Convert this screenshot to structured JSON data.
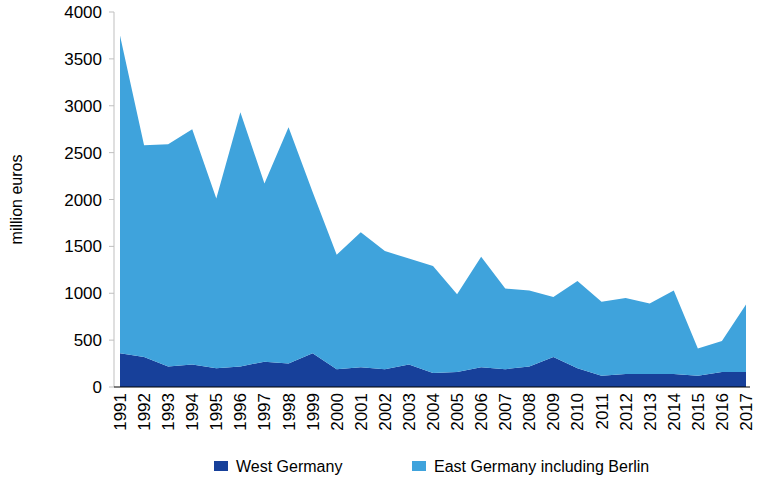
{
  "chart_data": {
    "type": "area",
    "stacked": true,
    "y_label": "million euros",
    "categories": [
      "1991",
      "1992",
      "1993",
      "1994",
      "1995",
      "1996",
      "1997",
      "1998",
      "1999",
      "2000",
      "2001",
      "2002",
      "2003",
      "2004",
      "2005",
      "2006",
      "2007",
      "2008",
      "2009",
      "2010",
      "2011",
      "2012",
      "2013",
      "2014",
      "2015",
      "2016",
      "2017"
    ],
    "series": [
      {
        "name": "West Germany",
        "color": "#17409a",
        "values": [
          360,
          320,
          220,
          240,
          200,
          220,
          270,
          250,
          360,
          190,
          210,
          190,
          240,
          150,
          160,
          210,
          190,
          220,
          320,
          200,
          120,
          140,
          140,
          140,
          120,
          160,
          160
        ]
      },
      {
        "name": "East Germany including Berlin",
        "color": "#3fa3dc",
        "values": [
          3390,
          2260,
          2370,
          2510,
          1810,
          2710,
          1900,
          2520,
          1720,
          1220,
          1440,
          1260,
          1130,
          1140,
          830,
          1180,
          860,
          810,
          640,
          930,
          790,
          810,
          750,
          890,
          290,
          330,
          720
        ]
      }
    ],
    "ylim": [
      0,
      4000
    ],
    "yticks": [
      0,
      500,
      1000,
      1500,
      2000,
      2500,
      3000,
      3500,
      4000
    ],
    "grid": false,
    "legend": "bottom"
  }
}
